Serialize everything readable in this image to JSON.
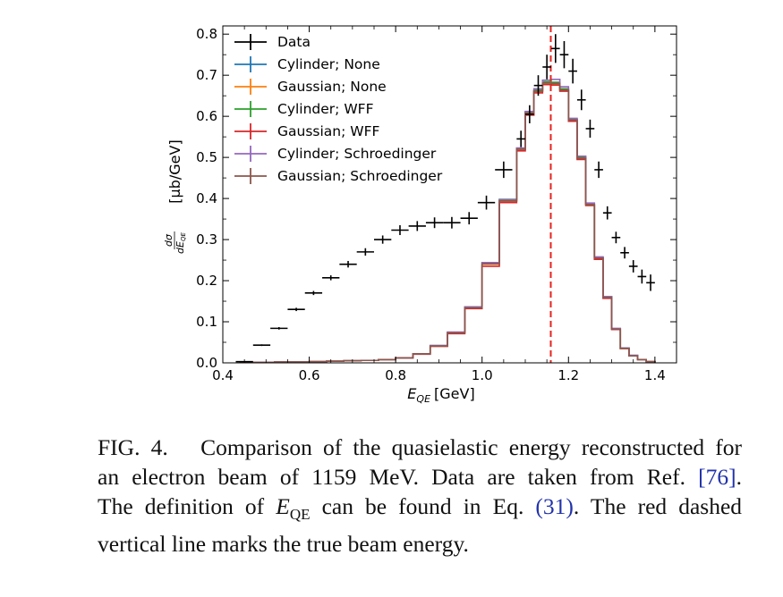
{
  "chart_data": {
    "type": "step-histogram-with-errorbars",
    "xlabel_main": "E",
    "xlabel_sub": "QE",
    "xlabel_unit": "[GeV]",
    "ylabel_frac_num": "dσ",
    "ylabel_frac_den": "dE",
    "ylabel_frac_den_sub": "QE",
    "ylabel_unit": "[μb/GeV]",
    "xlim": [
      0.4,
      1.45
    ],
    "ylim": [
      0.0,
      0.82
    ],
    "xticks": [
      {
        "v": 0.4,
        "label": "0.4"
      },
      {
        "v": 0.6,
        "label": "0.6"
      },
      {
        "v": 0.8,
        "label": "0.8"
      },
      {
        "v": 1.0,
        "label": "1.0"
      },
      {
        "v": 1.2,
        "label": "1.2"
      },
      {
        "v": 1.4,
        "label": "1.4"
      }
    ],
    "yticks": [
      {
        "v": 0.0,
        "label": "0.0"
      },
      {
        "v": 0.1,
        "label": "0.1"
      },
      {
        "v": 0.2,
        "label": "0.2"
      },
      {
        "v": 0.3,
        "label": "0.3"
      },
      {
        "v": 0.4,
        "label": "0.4"
      },
      {
        "v": 0.5,
        "label": "0.5"
      },
      {
        "v": 0.6,
        "label": "0.6"
      },
      {
        "v": 0.7,
        "label": "0.7"
      },
      {
        "v": 0.8,
        "label": "0.8"
      }
    ],
    "vline": {
      "x": 1.159,
      "color": "#e8241f",
      "style": "dashed"
    },
    "data_series": {
      "name": "Data",
      "color": "#000000",
      "points": [
        {
          "x": 0.45,
          "y": 0.003,
          "xerr": 0.02,
          "yerr": 0.001
        },
        {
          "x": 0.49,
          "y": 0.043,
          "xerr": 0.02,
          "yerr": 0.002
        },
        {
          "x": 0.53,
          "y": 0.084,
          "xerr": 0.02,
          "yerr": 0.003
        },
        {
          "x": 0.57,
          "y": 0.13,
          "xerr": 0.02,
          "yerr": 0.004
        },
        {
          "x": 0.61,
          "y": 0.17,
          "xerr": 0.02,
          "yerr": 0.005
        },
        {
          "x": 0.65,
          "y": 0.207,
          "xerr": 0.02,
          "yerr": 0.006
        },
        {
          "x": 0.69,
          "y": 0.24,
          "xerr": 0.02,
          "yerr": 0.008
        },
        {
          "x": 0.73,
          "y": 0.27,
          "xerr": 0.02,
          "yerr": 0.009
        },
        {
          "x": 0.77,
          "y": 0.3,
          "xerr": 0.02,
          "yerr": 0.01
        },
        {
          "x": 0.81,
          "y": 0.323,
          "xerr": 0.02,
          "yerr": 0.012
        },
        {
          "x": 0.85,
          "y": 0.333,
          "xerr": 0.02,
          "yerr": 0.012
        },
        {
          "x": 0.89,
          "y": 0.341,
          "xerr": 0.02,
          "yerr": 0.013
        },
        {
          "x": 0.93,
          "y": 0.341,
          "xerr": 0.02,
          "yerr": 0.014
        },
        {
          "x": 0.97,
          "y": 0.352,
          "xerr": 0.02,
          "yerr": 0.015
        },
        {
          "x": 1.01,
          "y": 0.39,
          "xerr": 0.02,
          "yerr": 0.017
        },
        {
          "x": 1.05,
          "y": 0.47,
          "xerr": 0.02,
          "yerr": 0.02
        },
        {
          "x": 1.09,
          "y": 0.545,
          "xerr": 0.01,
          "yerr": 0.02
        },
        {
          "x": 1.11,
          "y": 0.605,
          "xerr": 0.01,
          "yerr": 0.022
        },
        {
          "x": 1.13,
          "y": 0.675,
          "xerr": 0.01,
          "yerr": 0.025
        },
        {
          "x": 1.15,
          "y": 0.72,
          "xerr": 0.01,
          "yerr": 0.03
        },
        {
          "x": 1.17,
          "y": 0.765,
          "xerr": 0.01,
          "yerr": 0.035
        },
        {
          "x": 1.19,
          "y": 0.75,
          "xerr": 0.01,
          "yerr": 0.033
        },
        {
          "x": 1.21,
          "y": 0.71,
          "xerr": 0.01,
          "yerr": 0.03
        },
        {
          "x": 1.23,
          "y": 0.64,
          "xerr": 0.01,
          "yerr": 0.025
        },
        {
          "x": 1.25,
          "y": 0.57,
          "xerr": 0.01,
          "yerr": 0.022
        },
        {
          "x": 1.27,
          "y": 0.47,
          "xerr": 0.01,
          "yerr": 0.02
        },
        {
          "x": 1.29,
          "y": 0.365,
          "xerr": 0.01,
          "yerr": 0.016
        },
        {
          "x": 1.31,
          "y": 0.305,
          "xerr": 0.01,
          "yerr": 0.014
        },
        {
          "x": 1.33,
          "y": 0.268,
          "xerr": 0.01,
          "yerr": 0.014
        },
        {
          "x": 1.35,
          "y": 0.235,
          "xerr": 0.01,
          "yerr": 0.015
        },
        {
          "x": 1.37,
          "y": 0.21,
          "xerr": 0.01,
          "yerr": 0.017
        },
        {
          "x": 1.39,
          "y": 0.195,
          "xerr": 0.01,
          "yerr": 0.02
        }
      ]
    },
    "bin_edges": [
      0.44,
      0.48,
      0.52,
      0.56,
      0.6,
      0.64,
      0.68,
      0.72,
      0.76,
      0.8,
      0.84,
      0.88,
      0.92,
      0.96,
      1.0,
      1.04,
      1.08,
      1.1,
      1.12,
      1.14,
      1.16,
      1.18,
      1.2,
      1.22,
      1.24,
      1.26,
      1.28,
      1.3,
      1.32,
      1.34,
      1.36,
      1.38,
      1.4
    ],
    "model_series": [
      {
        "name": "Cylinder; None",
        "color": "#1f77b4",
        "values": [
          0.001,
          0.001,
          0.002,
          0.002,
          0.003,
          0.004,
          0.005,
          0.006,
          0.008,
          0.012,
          0.022,
          0.042,
          0.074,
          0.135,
          0.243,
          0.396,
          0.521,
          0.609,
          0.662,
          0.683,
          0.682,
          0.666,
          0.592,
          0.499,
          0.386,
          0.256,
          0.16,
          0.083,
          0.036,
          0.018,
          0.008,
          0.003
        ]
      },
      {
        "name": "Gaussian; None",
        "color": "#ff7f0e",
        "values": [
          0.001,
          0.001,
          0.002,
          0.002,
          0.003,
          0.004,
          0.005,
          0.006,
          0.008,
          0.012,
          0.022,
          0.041,
          0.073,
          0.134,
          0.24,
          0.393,
          0.519,
          0.607,
          0.66,
          0.68,
          0.678,
          0.663,
          0.59,
          0.497,
          0.384,
          0.254,
          0.158,
          0.082,
          0.035,
          0.017,
          0.008,
          0.003
        ]
      },
      {
        "name": "Cylinder; WFF",
        "color": "#2ca02c",
        "values": [
          0.001,
          0.001,
          0.002,
          0.002,
          0.003,
          0.004,
          0.005,
          0.006,
          0.008,
          0.012,
          0.022,
          0.042,
          0.074,
          0.136,
          0.244,
          0.398,
          0.522,
          0.611,
          0.664,
          0.684,
          0.683,
          0.667,
          0.593,
          0.5,
          0.387,
          0.257,
          0.161,
          0.083,
          0.036,
          0.018,
          0.008,
          0.003
        ]
      },
      {
        "name": "Gaussian; WFF",
        "color": "#d62728",
        "values": [
          0.001,
          0.001,
          0.002,
          0.002,
          0.003,
          0.004,
          0.005,
          0.006,
          0.008,
          0.012,
          0.021,
          0.04,
          0.071,
          0.132,
          0.235,
          0.39,
          0.516,
          0.603,
          0.657,
          0.677,
          0.676,
          0.661,
          0.588,
          0.495,
          0.383,
          0.252,
          0.157,
          0.081,
          0.035,
          0.017,
          0.008,
          0.003
        ]
      },
      {
        "name": "Cylinder; Schroedinger",
        "color": "#9467bd",
        "values": [
          0.001,
          0.001,
          0.002,
          0.002,
          0.003,
          0.004,
          0.005,
          0.006,
          0.008,
          0.012,
          0.022,
          0.042,
          0.075,
          0.136,
          0.244,
          0.397,
          0.523,
          0.612,
          0.667,
          0.688,
          0.69,
          0.672,
          0.595,
          0.503,
          0.389,
          0.258,
          0.161,
          0.084,
          0.036,
          0.018,
          0.008,
          0.003
        ]
      },
      {
        "name": "Gaussian; Schroedinger",
        "color": "#8c564b",
        "values": [
          0.001,
          0.001,
          0.002,
          0.002,
          0.003,
          0.004,
          0.005,
          0.006,
          0.008,
          0.012,
          0.022,
          0.041,
          0.073,
          0.134,
          0.241,
          0.394,
          0.52,
          0.608,
          0.661,
          0.681,
          0.68,
          0.664,
          0.591,
          0.498,
          0.385,
          0.255,
          0.159,
          0.082,
          0.035,
          0.017,
          0.008,
          0.003
        ]
      }
    ],
    "legend_position": "upper-left",
    "legend": [
      "Data",
      "Cylinder; None",
      "Gaussian; None",
      "Cylinder; WFF",
      "Gaussian; WFF",
      "Cylinder; Schroedinger",
      "Gaussian; Schroedinger"
    ]
  },
  "caption": {
    "label": "FIG. 4.",
    "line1_rest": "Comparison of the quasielastic energy reconstructed for",
    "line2_pre": "an electron beam of 1159 MeV. Data are taken from Ref.",
    "line2_ref": "[76]",
    "line2_post": ".",
    "line3_pre": "The definition of",
    "line3_var": "E",
    "line3_sub": "QE",
    "line3_mid": "can be found in Eq.",
    "line3_ref": "(31)",
    "line3_post": ". The red dashed",
    "line4": "vertical line marks the true beam energy."
  }
}
